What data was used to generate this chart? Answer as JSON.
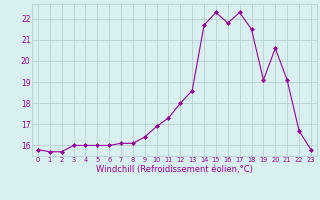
{
  "x": [
    0,
    1,
    2,
    3,
    4,
    5,
    6,
    7,
    8,
    9,
    10,
    11,
    12,
    13,
    14,
    15,
    16,
    17,
    18,
    19,
    20,
    21,
    22,
    23
  ],
  "y": [
    15.8,
    15.7,
    15.7,
    16.0,
    16.0,
    16.0,
    16.0,
    16.1,
    16.1,
    16.4,
    16.9,
    17.3,
    18.0,
    18.6,
    21.7,
    22.3,
    21.8,
    22.3,
    21.5,
    19.1,
    20.6,
    19.1,
    16.7,
    15.8
  ],
  "xlim": [
    -0.5,
    23.5
  ],
  "ylim": [
    15.5,
    22.7
  ],
  "yticks": [
    16,
    17,
    18,
    19,
    20,
    21,
    22
  ],
  "xticks": [
    0,
    1,
    2,
    3,
    4,
    5,
    6,
    7,
    8,
    9,
    10,
    11,
    12,
    13,
    14,
    15,
    16,
    17,
    18,
    19,
    20,
    21,
    22,
    23
  ],
  "xlabel": "Windchill (Refroidissement éolien,°C)",
  "line_color": "#990099",
  "marker": "D",
  "marker_size": 2,
  "bg_color": "#d8f0f0",
  "grid_color": "#b8d0d0",
  "tick_color": "#990099",
  "label_color": "#990099"
}
